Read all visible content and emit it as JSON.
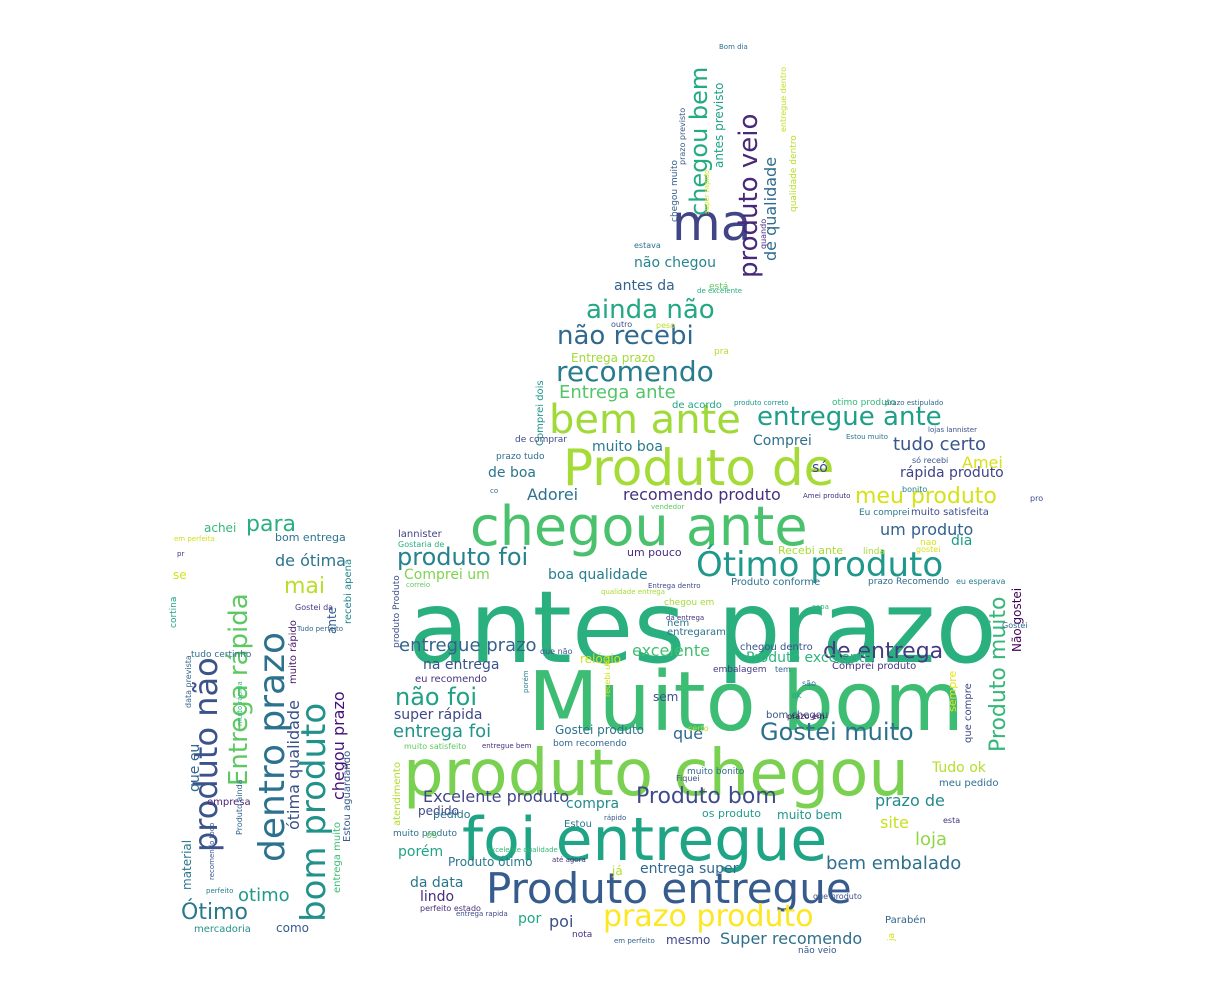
{
  "words": [
    {
      "text": "antes prazo",
      "color": "#2ab07f"
    },
    {
      "text": "Muito bom",
      "color": "#3dbc74"
    },
    {
      "text": "produto chegou",
      "color": "#7ad151"
    },
    {
      "text": "foi entregue",
      "color": "#20a486"
    },
    {
      "text": "chegou ante",
      "color": "#4ac16d"
    },
    {
      "text": "Produto de",
      "color": "#a5db36"
    },
    {
      "text": "Produto entregue",
      "color": "#365c8d"
    },
    {
      "text": "bem ante",
      "color": "#a0da39"
    },
    {
      "text": "ma",
      "color": "#414487"
    },
    {
      "text": "Ótimo produto",
      "color": "#1f988b"
    },
    {
      "text": "produto não",
      "color": "#3b528b"
    },
    {
      "text": "dentro prazo",
      "color": "#2c728e"
    },
    {
      "text": "bom produto",
      "color": "#21918c"
    },
    {
      "text": "prazo produto",
      "color": "#fde725"
    },
    {
      "text": "Entrega rápida",
      "color": "#5ec962"
    },
    {
      "text": "produto veio",
      "color": "#482878"
    },
    {
      "text": "recomendo",
      "color": "#287c8e"
    },
    {
      "text": "ainda não",
      "color": "#22a884"
    },
    {
      "text": "não recebi",
      "color": "#31688e"
    },
    {
      "text": "entregue ante",
      "color": "#1f9e89"
    },
    {
      "text": "Gostei muito",
      "color": "#2d708e"
    },
    {
      "text": "Produto bom",
      "color": "#3e4a89"
    },
    {
      "text": "chegou bem",
      "color": "#25ab82"
    },
    {
      "text": "Produto muito",
      "color": "#35b779"
    },
    {
      "text": "produto foi",
      "color": "#26828e"
    },
    {
      "text": "não foi",
      "color": "#1fa187"
    },
    {
      "text": "meu produto",
      "color": "#d5e21a"
    },
    {
      "text": "de entrega",
      "color": "#443a83"
    },
    {
      "text": "Ótimo",
      "color": "#2a788e"
    },
    {
      "text": "Entrega ante",
      "color": "#52c569"
    },
    {
      "text": "entregue prazo",
      "color": "#33638d"
    },
    {
      "text": "Excelente produto",
      "color": "#404688"
    },
    {
      "text": "bem embalado",
      "color": "#2e6f8e"
    },
    {
      "text": "entrega foi",
      "color": "#1f948c"
    },
    {
      "text": "recomendo produto",
      "color": "#46307e"
    },
    {
      "text": "de qualidade",
      "color": "#2f6c8e"
    },
    {
      "text": "para",
      "color": "#29af7f"
    },
    {
      "text": "mai",
      "color": "#b8de29"
    },
    {
      "text": "tudo certo",
      "color": "#39568c"
    },
    {
      "text": "Adorei",
      "color": "#2d718e"
    },
    {
      "text": "loja",
      "color": "#8fd744"
    },
    {
      "text": "Comprei um",
      "color": "#7fd34e"
    },
    {
      "text": "boa qualidade",
      "color": "#287d8e"
    },
    {
      "text": "um produto",
      "color": "#33628d"
    },
    {
      "text": "excelente",
      "color": "#42be71"
    },
    {
      "text": "na entrega",
      "color": "#3a538b"
    },
    {
      "text": "chegou prazo",
      "color": "#440f76"
    },
    {
      "text": "Super recomendo",
      "color": "#2e6e8e"
    },
    {
      "text": "super rápida",
      "color": "#3f4788"
    },
    {
      "text": "site",
      "color": "#c8e020"
    },
    {
      "text": "rápida produto",
      "color": "#404387"
    },
    {
      "text": "ótima qualidade",
      "color": "#3b518b"
    },
    {
      "text": "otimo",
      "color": "#1e9b8a"
    },
    {
      "text": "prazo de",
      "color": "#238a8d"
    },
    {
      "text": "muito boa",
      "color": "#297a8e"
    },
    {
      "text": "Amei",
      "color": "#d8e219"
    },
    {
      "text": "de ótima",
      "color": "#2c738e"
    },
    {
      "text": "Tudo ok",
      "color": "#b5de2b"
    },
    {
      "text": "porém",
      "color": "#20a386"
    },
    {
      "text": "não chegou",
      "color": "#25848e"
    },
    {
      "text": "entrega super",
      "color": "#31678e"
    },
    {
      "text": "Produto excelente",
      "color": "#2fb47c"
    },
    {
      "text": "que eu",
      "color": "#31668e"
    },
    {
      "text": "antes da",
      "color": "#33638d"
    },
    {
      "text": "da data",
      "color": "#2a768e"
    },
    {
      "text": "Comprei",
      "color": "#2d708e"
    },
    {
      "text": "antes previsto",
      "color": "#1fa188"
    },
    {
      "text": "que",
      "color": "#30698e"
    },
    {
      "text": "de boa",
      "color": "#2b758e"
    },
    {
      "text": "compra",
      "color": "#228b8d"
    },
    {
      "text": "Não gostei",
      "color": "#440154"
    },
    {
      "text": "dia",
      "color": "#1e9c89"
    },
    {
      "text": "lindo",
      "color": "#472d7b"
    },
    {
      "text": "Gostei produto",
      "color": "#2c738e"
    },
    {
      "text": "Produto ótimo",
      "color": "#2a778e"
    },
    {
      "text": "poi",
      "color": "#3c4f8a"
    },
    {
      "text": "só",
      "color": "#3f4889"
    },
    {
      "text": "por",
      "color": "#21a685"
    },
    {
      "text": "se",
      "color": "#d0e11c"
    },
    {
      "text": "muito rápido",
      "color": "#48186a"
    },
    {
      "text": "achei",
      "color": "#35b779"
    },
    {
      "text": "bom entrega",
      "color": "#2c738e"
    },
    {
      "text": "ante",
      "color": "#365d8d"
    },
    {
      "text": "como",
      "color": "#375a8c"
    },
    {
      "text": "Entrega prazo",
      "color": "#a2da37"
    },
    {
      "text": "recebi apena",
      "color": "#24878e"
    },
    {
      "text": "muito bem",
      "color": "#1f988b"
    },
    {
      "text": "entregaram",
      "color": "#2c728e"
    },
    {
      "text": "sem",
      "color": "#3b528b"
    },
    {
      "text": "pedido",
      "color": "#3e4989"
    },
    {
      "text": "material",
      "color": "#2a788e"
    },
    {
      "text": "relógio",
      "color": "#d2e21b"
    },
    {
      "text": "mercadoria",
      "color": "#20928c"
    },
    {
      "text": "qualidade dentro",
      "color": "#b8de29"
    },
    {
      "text": "empresa",
      "color": "#482475"
    },
    {
      "text": "data prevista",
      "color": "#33638d"
    },
    {
      "text": "Estou aguardando",
      "color": "#375b8d"
    },
    {
      "text": "um pouco",
      "color": "#472c7a"
    },
    {
      "text": "Produto conforme",
      "color": "#2e6f8e"
    },
    {
      "text": "chegou dentro",
      "color": "#3a538b"
    },
    {
      "text": "Comprei produto",
      "color": "#453781"
    },
    {
      "text": "chegou muito",
      "color": "#34608d"
    },
    {
      "text": "Recebi ante",
      "color": "#a8db34"
    },
    {
      "text": "eu recomendo",
      "color": "#46337f"
    },
    {
      "text": "entrega muito",
      "color": "#3fbc73"
    },
    {
      "text": "Estou",
      "color": "#2b758e"
    },
    {
      "text": "cortina",
      "color": "#20a386"
    },
    {
      "text": "sempre",
      "color": "#e5e419"
    },
    {
      "text": "prazo Recomendo",
      "color": "#2f6b8e"
    },
    {
      "text": "muito satisfeita",
      "color": "#3d4e8a"
    },
    {
      "text": "atendimento",
      "color": "#b0dd2f"
    },
    {
      "text": "que compre",
      "color": "#3e4a89"
    },
    {
      "text": "embalagem",
      "color": "#443b84"
    },
    {
      "text": "entregue dentro",
      "color": "#bddf26"
    },
    {
      "text": "lannister",
      "color": "#404588"
    },
    {
      "text": "bonito",
      "color": "#287d8e"
    },
    {
      "text": "nota",
      "color": "#46327e"
    },
    {
      "text": "Fiquei",
      "color": "#3b518b"
    },
    {
      "text": "pedido",
      "color": "#2b748e"
    },
    {
      "text": "muito bonito",
      "color": "#2f6c8e"
    },
    {
      "text": "os produto",
      "color": "#1f9e89"
    },
    {
      "text": "já",
      "color": "#b5de2b"
    },
    {
      "text": "Parabén",
      "color": "#31668e"
    },
    {
      "text": "chegou em",
      "color": "#a5db36"
    },
    {
      "text": "produto Produto",
      "color": "#3b528b"
    },
    {
      "text": "quando",
      "color": "#472d7b"
    },
    {
      "text": "Gostei da",
      "color": "#453882"
    },
    {
      "text": "tudo certinho",
      "color": "#2d708e"
    },
    {
      "text": "Produto ainda",
      "color": "#33638d"
    },
    {
      "text": "mesmo",
      "color": "#404588"
    },
    {
      "text": "nem",
      "color": "#2a768e"
    },
    {
      "text": "estava",
      "color": "#2c728e"
    },
    {
      "text": "outro",
      "color": "#3b518b"
    },
    {
      "text": "prazo previsto",
      "color": "#39568c"
    },
    {
      "text": "muito produto",
      "color": "#2d708e"
    },
    {
      "text": "Bom dia",
      "color": "#2d708e"
    },
    {
      "text": "não veio",
      "color": "#39568c"
    },
    {
      "text": "está",
      "color": "#5ec962"
    },
    {
      "text": "Comprei dois",
      "color": "#1f958b"
    },
    {
      "text": "prazo tudo",
      "color": "#2f6c8e"
    },
    {
      "text": "Estou muito",
      "color": "#2a768e"
    },
    {
      "text": "Amei produto",
      "color": "#46307e"
    },
    {
      "text": "Eu comprei",
      "color": "#2a788e"
    },
    {
      "text": "só recebi",
      "color": "#3a548c"
    },
    {
      "text": "lojas lannister",
      "color": "#3b528b"
    },
    {
      "text": "Gostaria de",
      "color": "#29af7f"
    },
    {
      "text": "otimo produto",
      "color": "#35b779"
    },
    {
      "text": "prazo estipulado",
      "color": "#31668e"
    },
    {
      "text": "produto correto",
      "color": "#1f948c"
    },
    {
      "text": "de acordo",
      "color": "#20a386"
    },
    {
      "text": "pra",
      "color": "#b0dd2f"
    },
    {
      "text": "peso",
      "color": "#b8de29"
    },
    {
      "text": "de excelente",
      "color": "#25ab82"
    },
    {
      "text": "pro",
      "color": "#3e4a89"
    },
    {
      "text": "linda",
      "color": "#a5db36"
    },
    {
      "text": "nao",
      "color": "#d8e219"
    },
    {
      "text": "gostei",
      "color": "#d8e219"
    },
    {
      "text": "eu esperava",
      "color": "#287d8e"
    },
    {
      "text": "Gostei",
      "color": "#31688e"
    },
    {
      "text": "os",
      "color": "#5ec962"
    },
    {
      "text": "esta",
      "color": "#46337f"
    },
    {
      "text": "meu pedido",
      "color": "#2d718e"
    },
    {
      "text": "são",
      "color": "#2c738e"
    },
    {
      "text": "tem",
      "color": "#31668e"
    },
    {
      "text": "ok",
      "color": "#20a386"
    },
    {
      "text": "bom chegou",
      "color": "#3a548c"
    },
    {
      "text": "prazo em",
      "color": "#440154"
    },
    {
      "text": "certo",
      "color": "#b5de2b"
    },
    {
      "text": "recebi um",
      "color": "#d0e11c"
    },
    {
      "text": "que não",
      "color": "#3b528b"
    },
    {
      "text": "porém",
      "color": "#287d8e"
    },
    {
      "text": "muito satisfeito",
      "color": "#5ec962"
    },
    {
      "text": "entregue bem",
      "color": "#46307e"
    },
    {
      "text": "bom recomendo",
      "color": "#31668e"
    },
    {
      "text": "rápido",
      "color": "#3a548c"
    },
    {
      "text": "excelente qualidade",
      "color": "#35b779"
    },
    {
      "text": "até agora",
      "color": "#46337f"
    },
    {
      "text": "entrega rapida",
      "color": "#3e4a89"
    },
    {
      "text": "perfeito estado",
      "color": "#46307e"
    },
    {
      "text": "em perfeito",
      "color": "#31668e"
    },
    {
      "text": "que produto",
      "color": "#3b528b"
    },
    {
      "text": "ja",
      "color": "#d8e219"
    },
    {
      "text": "co",
      "color": "#2c738e"
    },
    {
      "text": "vendedor",
      "color": "#5ec962"
    },
    {
      "text": "de comprar",
      "color": "#3e4a89"
    },
    {
      "text": "pr",
      "color": "#46337f"
    },
    {
      "text": "em perfeita",
      "color": "#d0e11c"
    },
    {
      "text": "Tudo perfeito",
      "color": "#31668e"
    },
    {
      "text": "correio",
      "color": "#5ec962"
    },
    {
      "text": "recomendo todo",
      "color": "#3a548c"
    },
    {
      "text": "perfeito",
      "color": "#287d8e"
    },
    {
      "text": "capa",
      "color": "#35b779"
    },
    {
      "text": "da entrega",
      "color": "#46307e"
    },
    {
      "text": "Entrega dentro",
      "color": "#3e4a89"
    },
    {
      "text": "qualidade entrega",
      "color": "#a5db36"
    },
    {
      "text": "super rapido",
      "color": "#d8e219"
    },
    {
      "text": "muito rápida",
      "color": "#35b779"
    },
    {
      "text": "Adorei produto",
      "color": "#3a548c"
    }
  ]
}
